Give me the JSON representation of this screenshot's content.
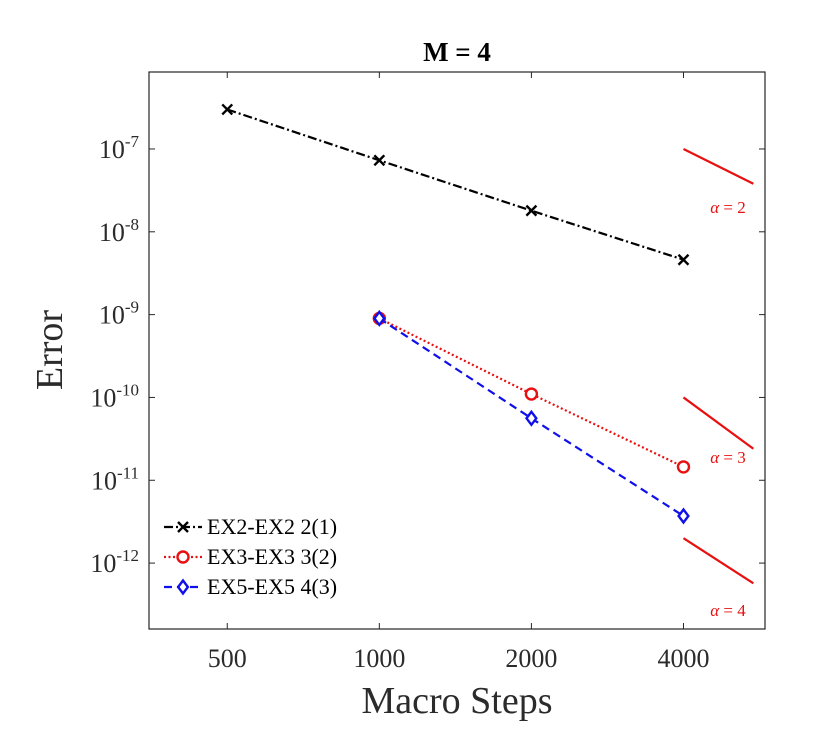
{
  "chart_data": {
    "type": "line",
    "title": "M = 4",
    "xlabel": "Macro Steps",
    "ylabel": "Error",
    "xscale": "log",
    "yscale": "log",
    "xlim": [
      350,
      5800
    ],
    "ylim": [
      1.6e-13,
      8.5e-07
    ],
    "xticks": [
      500,
      1000,
      2000,
      4000
    ],
    "xtick_labels": [
      "500",
      "1000",
      "2000",
      "4000"
    ],
    "yticks": [
      {
        "base": "10",
        "exp": "-12",
        "value": 1e-12
      },
      {
        "base": "10",
        "exp": "-11",
        "value": 1e-11
      },
      {
        "base": "10",
        "exp": "-10",
        "value": 1e-10
      },
      {
        "base": "10",
        "exp": "-9",
        "value": 1e-09
      },
      {
        "base": "10",
        "exp": "-8",
        "value": 1e-08
      },
      {
        "base": "10",
        "exp": "-7",
        "value": 1e-07
      }
    ],
    "series": [
      {
        "name": "EX2-EX2 2(1)",
        "color": "#000000",
        "marker": "x",
        "dash": "dashdot",
        "x": [
          500,
          1000,
          2000,
          4000
        ],
        "y": [
          3e-07,
          7.3e-08,
          1.8e-08,
          4.6e-09
        ]
      },
      {
        "name": "EX3-EX3 3(2)",
        "color": "#e81010",
        "marker": "circle",
        "dash": "dotted",
        "x": [
          1000,
          2000,
          4000
        ],
        "y": [
          9e-10,
          1.1e-10,
          1.45e-11
        ]
      },
      {
        "name": "EX5-EX5 4(3)",
        "color": "#1010e8",
        "marker": "diamond",
        "dash": "dashed",
        "x": [
          1000,
          2000,
          4000
        ],
        "y": [
          9e-10,
          5.6e-11,
          3.7e-12
        ]
      }
    ],
    "reference_slopes": [
      {
        "label_var": "α",
        "label_rest": " = 2",
        "color": "#e81010",
        "x": [
          4000,
          5500
        ],
        "y": [
          1e-07,
          3.8e-08
        ],
        "label_x": 4900,
        "label_y": 2e-08
      },
      {
        "label_var": "α",
        "label_rest": " = 3",
        "color": "#e81010",
        "x": [
          4000,
          5500
        ],
        "y": [
          1e-10,
          2.4e-11
        ],
        "label_x": 4900,
        "label_y": 1.9e-11
      },
      {
        "label_var": "α",
        "label_rest": " = 4",
        "color": "#e81010",
        "x": [
          4000,
          5500
        ],
        "y": [
          2e-12,
          5.7e-13
        ],
        "label_x": 4900,
        "label_y": 2.7e-13
      }
    ],
    "legend": {
      "placement": "bottom-left",
      "box": false
    }
  }
}
